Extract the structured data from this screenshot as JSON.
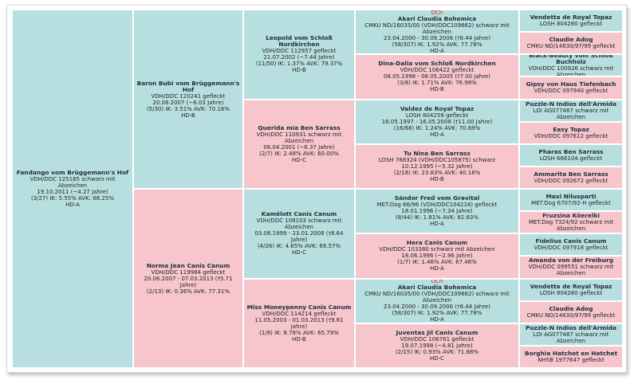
{
  "pedigree": {
    "subject": {
      "name": "Fandango vom Brüggemann's Hof",
      "lines": [
        "VDH/DDC 125185 schwarz mit Abzeichen",
        "19.10.2011 (~4.27 Jahre)",
        "(3/27) IK: 5.55% AVK: 68.25%",
        "HD-A"
      ]
    },
    "sire": {
      "name": "Baron Bubi vom Brüggemann's Hof",
      "lines": [
        "VDH/DDC 120241 gefleckt",
        "20.08.2007 (~6.03 Jahre)",
        "(5/30) IK: 3.51% AVK: 70.16%",
        "HD-B"
      ]
    },
    "dam": {
      "name": "Norma Jean Canis Canum",
      "lines": [
        "VDH/DDC 119984 gefleckt",
        "20.06.2007 - 07.03.2013 (†5.71 Jahre)",
        "(2/13) IK: 0.36% AVK: 77.31%"
      ]
    },
    "gen3": [
      {
        "name": "Leopold vom Schloß Nordkirchen",
        "lines": [
          "VDH/DDC 112957 gefleckt",
          "21.07.2002 (~7.44 Jahre)",
          "(11/50) IK: 1.37% AVK: 79.37%",
          "HD-B"
        ]
      },
      {
        "name": "Querida mia Ben Sarrass",
        "lines": [
          "VDH/DDC 110931 schwarz mit Abzeichen",
          "06.04.2001 (~6.37 Jahre)",
          "(2/7) IK: 2.48% AVK: 60.00%",
          "HD-C"
        ]
      },
      {
        "name": "Kamëlott Canis Canum",
        "lines": [
          "VDH/DDC 108103 schwarz mit Abzeichen",
          "03.06.1999 - 23.01.2008 (†8.64 Jahre)",
          "(4/26) IK: 4.65% AVK: 69.57%",
          "HD-C"
        ]
      },
      {
        "name": "Miss Moneypenny Canis Canum",
        "lines": [
          "VDH/DDC 114214 gefleckt",
          "11.05.2003 - 01.03.2013 (†9.81 Jahre)",
          "(1/8) IK: 8.78% AVK: 65.79%",
          "HD-B"
        ]
      }
    ],
    "gen4": [
      {
        "title": "DCh",
        "name": "Akari Claudia Bohemica",
        "lines": [
          "CMKU ND/16035/00 (VDH/DDC109662) schwarz mit Abzeichen",
          "23.04.2000 - 30.09.2006 (†6.44 Jahre)",
          "(58/307) IK: 1.92% AVK: 77.78%",
          "HD-A"
        ]
      },
      {
        "title": "",
        "name": "Dina-Dalia vom Schloß Nordkirchen",
        "lines": [
          "VDH/DDC 106422 gefleckt",
          "08.05.1998 - 08.05.2005 (†7.00 Jahre)",
          "(3/8) IK: 1.71% AVK: 76.98%",
          "HD-B"
        ]
      },
      {
        "title": "",
        "name": "Valdez de Royal Topaz",
        "lines": [
          "LOSH 804259 gefleckt",
          "16.05.1997 - 16.05.2008 (†11.00 Jahre)",
          "(16/68) IK: 1.24% AVK: 70.69%",
          "HD-A"
        ]
      },
      {
        "title": "",
        "name": "Tu Nina Ben Sarrass",
        "lines": [
          "LOSH 768324 (VDH/DDC105875) schwarz",
          "10.12.1995 (~5.32 Jahre)",
          "(2/18) IK: 23.83% AVK: 40.18%",
          "HD-B"
        ]
      },
      {
        "title": "",
        "name": "Sándor Fred vom Gravital",
        "lines": [
          "MET.Dog 66/96 (VDH/DDC104218) gefleckt",
          "18.01.1996 (~7.34 Jahre)",
          "(8/44) IK: 1.81% AVK: 82.83%",
          "HD-A"
        ]
      },
      {
        "title": "",
        "name": "Hera Canis Canum",
        "lines": [
          "VDH/DDC 103380 schwarz mit Abzeichen",
          "18.06.1996 (~2.96 Jahre)",
          "(1/7) IK: 1.46% AVK: 67.46%",
          "HD-A"
        ]
      },
      {
        "title": "DCh",
        "name": "Akari Claudia Bohemica",
        "lines": [
          "CMKU ND/16035/00 (VDH/DDC109662) schwarz mit Abzeichen",
          "23.04.2000 - 30.09.2006 (†6.44 Jahre)",
          "(58/307) IK: 1.92% AVK: 77.78%",
          "HD-A"
        ]
      },
      {
        "title": "",
        "name": "Juventas Jil Canis Canum",
        "lines": [
          "VDH/DDC 106761 gefleckt",
          "19.07.1998 (~4.81 Jahre)",
          "(2/15) IK: 0.93% AVK: 71.88%",
          "HD-C"
        ]
      }
    ],
    "gen5": [
      {
        "name": "Vendetta de Royal Topaz",
        "lines": [
          "LOSH 804260 gefleckt"
        ]
      },
      {
        "name": "Claudie Adog",
        "lines": [
          "CMKU ND/14830/97/99 gefleckt"
        ]
      },
      {
        "name": "Black-Beauty vom Schloß Buchholz",
        "lines": [
          "VDH/DDC 100926 schwarz mit Abzeichen"
        ]
      },
      {
        "name": "Gipsy von Haus Tiefenbach",
        "lines": [
          "VDH/DDC 097940 gefleckt"
        ]
      },
      {
        "name": "Puzzle-N Indios dell'Armida",
        "lines": [
          "LOI AG077487 schwarz mit Abzeichen"
        ]
      },
      {
        "name": "Easy Topaz",
        "lines": [
          "VDH/DDC 097612 gefleckt"
        ]
      },
      {
        "name": "Pharas Ben Sarrass",
        "lines": [
          "LOSH 666104 gefleckt"
        ]
      },
      {
        "name": "Ammarita Ben Sarrass",
        "lines": [
          "VDH/DDC 092672 gefleckt"
        ]
      },
      {
        "name": "Maxi Nilusparti",
        "lines": [
          "MET.Dog 6707/92-H gefleckt"
        ]
      },
      {
        "name": "Fruzsina Köerelki",
        "lines": [
          "MET.Dog 7324/92 schwarz mit Abzeichen"
        ]
      },
      {
        "name": "Fidelius Canis Canum",
        "lines": [
          "VDH/DDC 097918 gefleckt"
        ]
      },
      {
        "name": "Amanda von der Freiburg",
        "lines": [
          "VDH/DDC 099551 schwarz mit Abzeichen"
        ]
      },
      {
        "name": "Vendetta de Royal Topaz",
        "lines": [
          "LOSH 804260 gefleckt"
        ]
      },
      {
        "name": "Claudie Adog",
        "lines": [
          "CMKU ND/14830/97/99 gefleckt"
        ]
      },
      {
        "name": "Puzzle-N Indios dell'Armida",
        "lines": [
          "LOI AG077487 schwarz mit Abzeichen"
        ]
      },
      {
        "name": "Borghia Hatchet en Hatchet",
        "lines": [
          "NHSB 1977647 gefleckt"
        ]
      }
    ],
    "colors": {
      "male": "#b8dfdf",
      "female": "#f6c6cc"
    }
  }
}
